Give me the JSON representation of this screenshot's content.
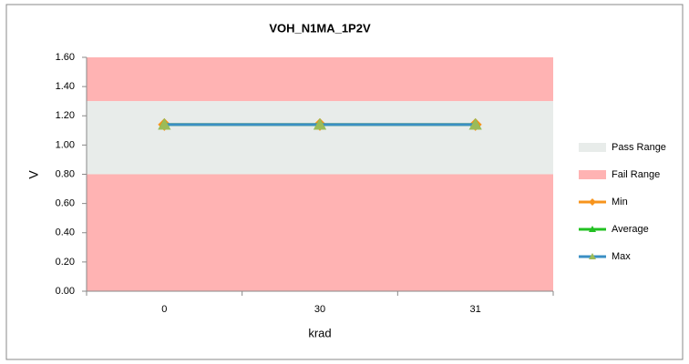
{
  "chart_data": {
    "type": "line",
    "title": "VOH_N1MA_1P2V",
    "x_label": "krad",
    "y_label": "V",
    "categories": [
      "0",
      "30",
      "31"
    ],
    "ylim": [
      0,
      1.6
    ],
    "yticks": [
      {
        "value": 0,
        "label": "0.00"
      },
      {
        "value": 0.2,
        "label": "0.20"
      },
      {
        "value": 0.4,
        "label": "0.40"
      },
      {
        "value": 0.6,
        "label": "0.60"
      },
      {
        "value": 0.8,
        "label": "0.80"
      },
      {
        "value": 1.0,
        "label": "1.00"
      },
      {
        "value": 1.2,
        "label": "1.20"
      },
      {
        "value": 1.4,
        "label": "1.40"
      },
      {
        "value": 1.6,
        "label": "1.60"
      }
    ],
    "bands": [
      {
        "name": "Pass Range",
        "color": "#e8ecea",
        "ranges": [
          [
            0.8,
            1.3
          ]
        ]
      },
      {
        "name": "Fail Range",
        "color": "#ffb3b3",
        "ranges": [
          [
            0,
            0.8
          ],
          [
            1.3,
            1.6
          ]
        ]
      }
    ],
    "series": [
      {
        "name": "Min",
        "color": "#f7941d",
        "marker": "diamond",
        "marker_color": "#f7941d",
        "values": [
          1.14,
          1.14,
          1.14
        ]
      },
      {
        "name": "Average",
        "color": "#22c022",
        "marker": "triangle",
        "marker_color": "#22c022",
        "values": [
          1.14,
          1.14,
          1.14
        ]
      },
      {
        "name": "Max",
        "color": "#3a8fc4",
        "marker": "triangle",
        "marker_color": "#9bbb59",
        "values": [
          1.14,
          1.14,
          1.14
        ]
      }
    ],
    "legend": "right"
  }
}
